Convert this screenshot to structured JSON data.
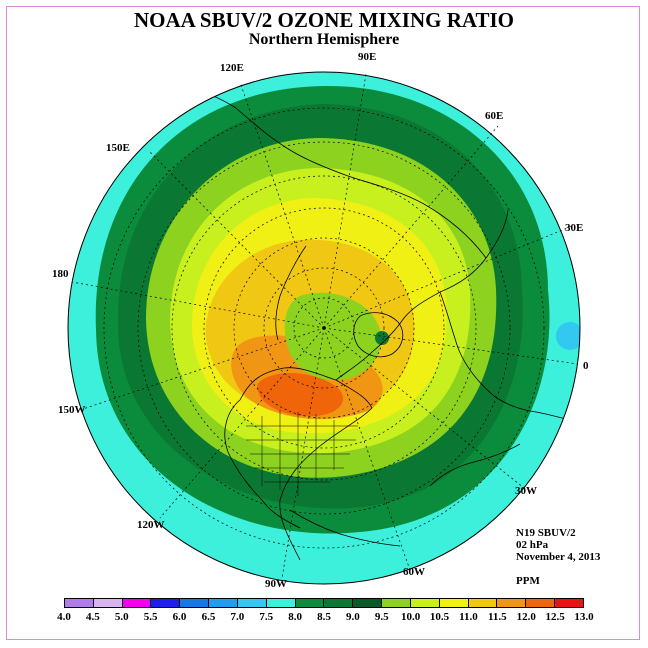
{
  "title": "NOAA SBUV/2 OZONE MIXING RATIO",
  "subtitle": "Northern Hemisphere",
  "longitude_labels": {
    "e120": "120E",
    "e90": "90E",
    "e60": "60E",
    "e150": "150E",
    "e30": "30E",
    "e180": "180",
    "e0": "0",
    "w150": "150W",
    "w30": "30W",
    "w120": "120W",
    "w60": "60W",
    "w90": "90W"
  },
  "info": {
    "instrument": "N19 SBUV/2",
    "level": "02 hPa",
    "date": "November 4, 2013",
    "units": "PPM"
  },
  "colorbar": {
    "ticks": [
      "4.0",
      "4.5",
      "5.0",
      "5.5",
      "6.0",
      "6.5",
      "7.0",
      "7.5",
      "8.0",
      "8.5",
      "9.0",
      "9.5",
      "10.0",
      "10.5",
      "11.0",
      "11.5",
      "12.0",
      "12.5",
      "13.0"
    ],
    "colors": [
      "#b07de8",
      "#d9b3f0",
      "#f000f0",
      "#1e1ee6",
      "#1478e6",
      "#1e9ef0",
      "#32c8f0",
      "#3cf0dc",
      "#0a8c3c",
      "#0a7832",
      "#0a5a28",
      "#8cd21e",
      "#c8f01e",
      "#f0f014",
      "#f0c814",
      "#f09614",
      "#f0640a",
      "#e61414",
      "#8c5a3c"
    ]
  },
  "map_colors": {
    "outer_ring": "#3cf0dc",
    "band_8_0": "#0a8c3c",
    "band_8_5": "#0a7832",
    "band_9_5": "#8cd21e",
    "band_10_0": "#c8f01e",
    "band_10_5": "#f0f014",
    "band_11_0": "#f0c814",
    "band_11_5": "#f09614",
    "band_12_0": "#f0640a"
  }
}
